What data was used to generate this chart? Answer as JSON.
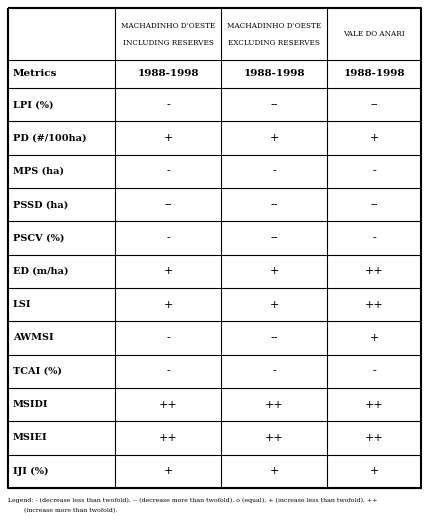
{
  "col_headers": [
    [
      "MACHADINHO D’OESTE",
      "INCLUDING RESERVES"
    ],
    [
      "MACHADINHO D’OESTE",
      "EXCLUDING RESERVES"
    ],
    [
      "VALE DO ANARI",
      ""
    ]
  ],
  "row_header": "Metrics",
  "subheader": "1988-1998",
  "metrics": [
    "LPI (%)",
    "PD (#/100ha)",
    "MPS (ha)",
    "PSSD (ha)",
    "PSCV (%)",
    "ED (m/ha)",
    "LSI",
    "AWMSI",
    "TCAI (%)",
    "MSIDI",
    "MSIEI",
    "IJI (%)"
  ],
  "col1_values": [
    "−",
    "+",
    "−",
    "−−",
    "−",
    "+",
    "+",
    "−",
    "−",
    "++",
    "++",
    "+"
  ],
  "col2_values": [
    "−−",
    "+",
    "−",
    "−−",
    "−−",
    "+",
    "+",
    "−−",
    "−",
    "++",
    "++",
    "+"
  ],
  "col3_values": [
    "−−",
    "+",
    "−",
    "−−",
    "−",
    "++",
    "++",
    "+",
    "−",
    "++",
    "++",
    "+"
  ],
  "legend_line1": "Legend: - (decrease less than twofold), -- (decrease more than twofold), o (equal), + (increase less than twofold), ++",
  "legend_line2": "        (increase more than twofold).",
  "background_color": "#ffffff",
  "border_color": "#000000",
  "fig_width": 4.29,
  "fig_height": 5.3
}
